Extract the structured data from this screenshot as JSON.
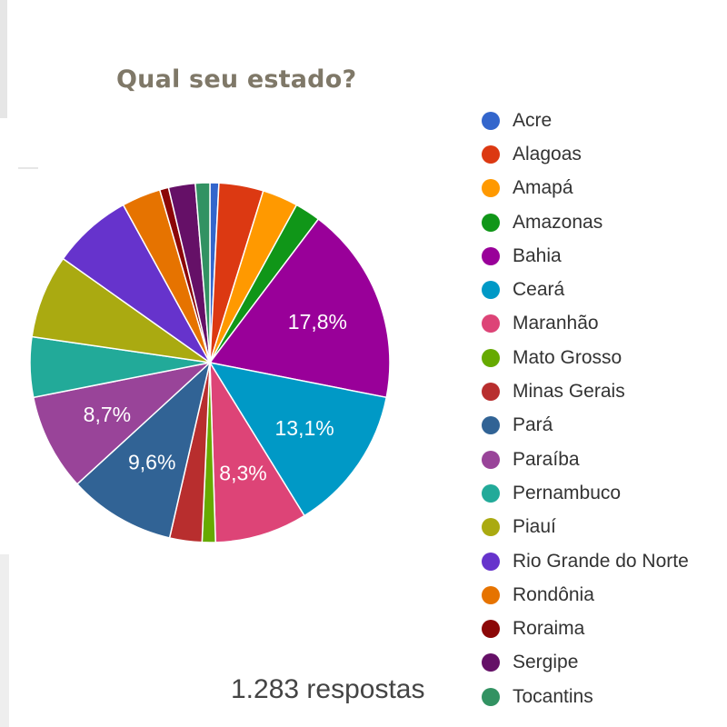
{
  "title": "Qual seu estado?",
  "responses_label": "1.283 respostas",
  "chart_data": {
    "type": "pie",
    "title": "Qual seu estado?",
    "start_angle_deg": 90,
    "direction": "clockwise",
    "legend_position": "right",
    "slices": [
      {
        "label": "Acre",
        "value": 0.8,
        "color": "#3366cc",
        "show_label": false
      },
      {
        "label": "Alagoas",
        "value": 4.0,
        "color": "#dc3912",
        "show_label": false
      },
      {
        "label": "Amapá",
        "value": 3.2,
        "color": "#ff9900",
        "show_label": false
      },
      {
        "label": "Amazonas",
        "value": 2.3,
        "color": "#109618",
        "show_label": false
      },
      {
        "label": "Bahia",
        "value": 17.8,
        "color": "#990099",
        "show_label": true,
        "text": "17,8%"
      },
      {
        "label": "Ceará",
        "value": 13.1,
        "color": "#0099c6",
        "show_label": true,
        "text": "13,1%"
      },
      {
        "label": "Maranhão",
        "value": 8.3,
        "color": "#dd4477",
        "show_label": true,
        "text": "8,3%"
      },
      {
        "label": "Mato Grosso",
        "value": 1.2,
        "color": "#66aa00",
        "show_label": false
      },
      {
        "label": "Minas Gerais",
        "value": 2.9,
        "color": "#b82e2e",
        "show_label": false
      },
      {
        "label": "Pará",
        "value": 9.6,
        "color": "#316395",
        "show_label": true,
        "text": "9,6%"
      },
      {
        "label": "Paraíba",
        "value": 8.7,
        "color": "#994499",
        "show_label": true,
        "text": "8,7%"
      },
      {
        "label": "Pernambuco",
        "value": 5.4,
        "color": "#22aa99",
        "show_label": false
      },
      {
        "label": "Piauí",
        "value": 7.5,
        "color": "#aaaa11",
        "show_label": false
      },
      {
        "label": "Rio Grande do Norte",
        "value": 7.2,
        "color": "#6633cc",
        "show_label": false
      },
      {
        "label": "Rondônia",
        "value": 3.5,
        "color": "#e67300",
        "show_label": false
      },
      {
        "label": "Roraima",
        "value": 0.8,
        "color": "#8b0707",
        "show_label": false
      },
      {
        "label": "Sergipe",
        "value": 2.4,
        "color": "#651067",
        "show_label": false
      },
      {
        "label": "Tocantins",
        "value": 1.3,
        "color": "#329262",
        "show_label": false
      }
    ]
  }
}
